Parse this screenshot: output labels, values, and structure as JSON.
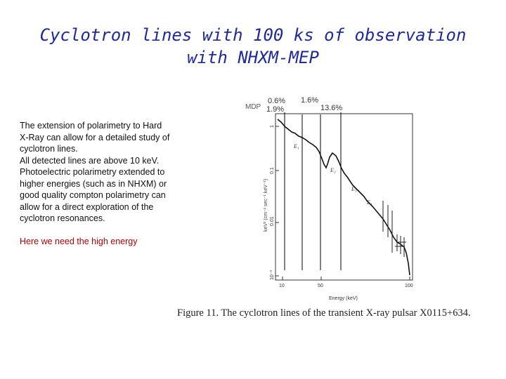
{
  "title": {
    "line1": "Cyclotron lines with 100 ks of observation",
    "line2": "with NHXM-MEP"
  },
  "body": {
    "paragraph1": "The extension of polarimetry to Hard X-Ray can allow for a detailed study of cyclotron lines.",
    "paragraph2": "All detected lines are above 10 keV.  Photoelectric polarimetry extended to higher energies (such as in NHXM) or good quality compton polarimetry can allow for a direct exploration of the cyclotron resonances.",
    "highlight": "Here we need the high energy"
  },
  "figure": {
    "mdp_label": "MDP",
    "mdp_values": [
      "0.6%",
      "1.9%",
      "1.6%",
      "13.6%"
    ],
    "y_axis_label": "keV² (cm⁻² sec⁻¹ keV⁻¹)",
    "y_ticks": [
      "1",
      "0.1",
      "0.01",
      "10⁻³"
    ],
    "x_ticks": [
      "10",
      "50",
      "100"
    ],
    "x_axis_label": "Energy (keV)",
    "line_labels": [
      "E₁",
      "E₂",
      "E₃",
      "E₄"
    ],
    "caption": "Figure 11. The cyclotron lines of the transient X-ray pulsar X0115+634."
  },
  "colors": {
    "title": "#1f2a9c",
    "highlight": "#b30000"
  }
}
